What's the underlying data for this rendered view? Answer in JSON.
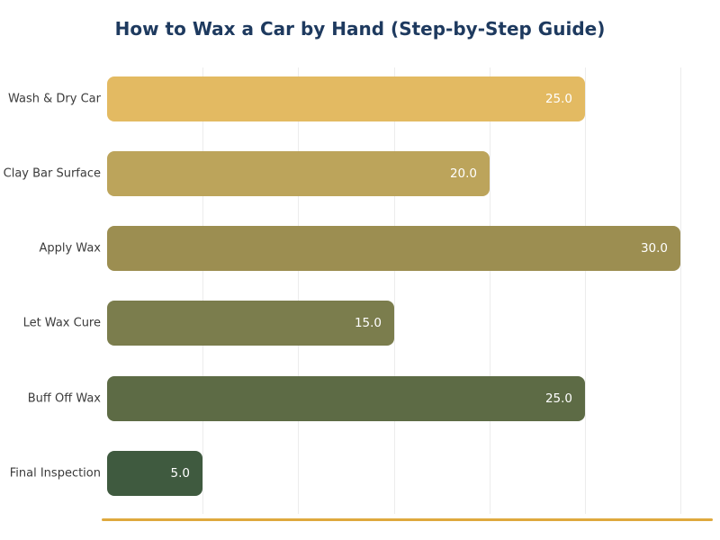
{
  "chart_data": {
    "type": "bar",
    "orientation": "horizontal",
    "title": "How to Wax a Car by Hand (Step-by-Step Guide)",
    "categories": [
      "Wash & Dry Car",
      "Clay Bar Surface",
      "Apply Wax",
      "Let Wax Cure",
      "Buff Off Wax",
      "Final Inspection"
    ],
    "values": [
      25,
      20,
      30,
      15,
      25,
      5
    ],
    "value_labels": [
      "25.0",
      "20.0",
      "30.0",
      "15.0",
      "25.0",
      "5.0"
    ],
    "bar_colors": [
      "#e3ba62",
      "#bca45b",
      "#9c8e51",
      "#7b7d4d",
      "#5d6b45",
      "#3f5a3f"
    ],
    "xlim": [
      0,
      31.6
    ],
    "grid_ticks": [
      5,
      10,
      15,
      20,
      25,
      30
    ],
    "grid": "on",
    "legend": "none",
    "xlabel": "",
    "ylabel": "",
    "colors": {
      "title_color": "#1e3a5f",
      "category_label_color": "#3b3b3b",
      "value_label_color": "#ffffff",
      "gridline_color": "#ececec",
      "axis_line_color": "#dfa93e",
      "background": "#ffffff"
    }
  }
}
